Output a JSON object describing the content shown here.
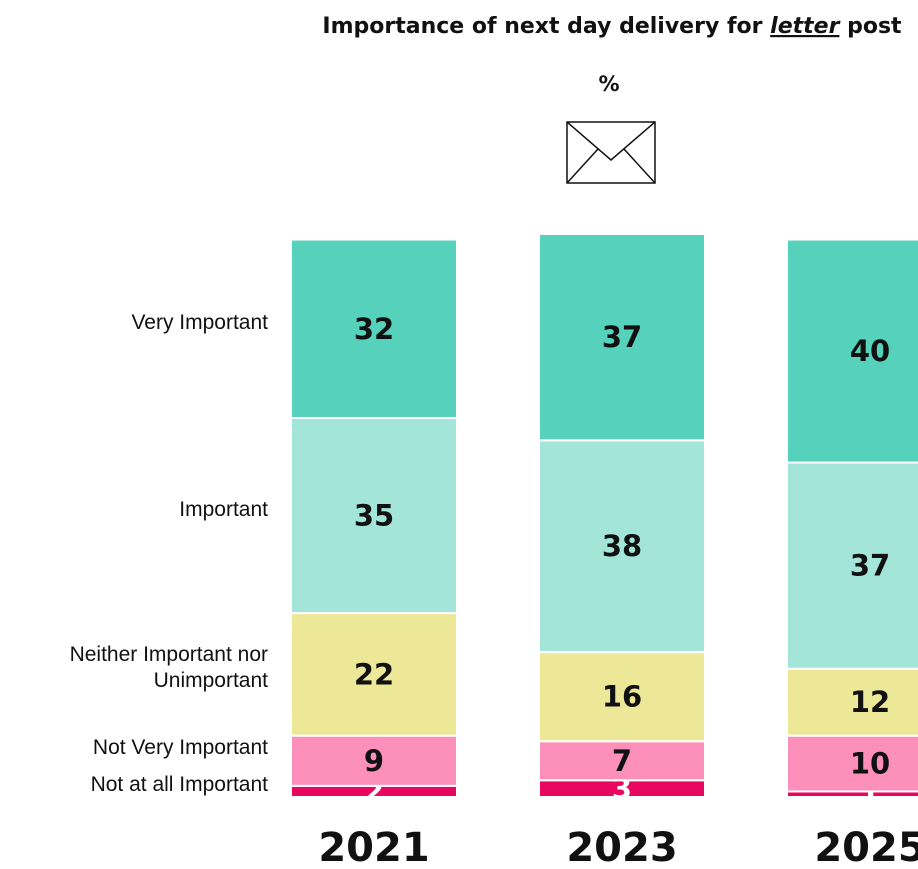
{
  "chart_data": {
    "type": "stacked-bar",
    "title": "Importance of next day delivery for",
    "title_emphasis": "letter",
    "title_end": "post",
    "subtitle": "%",
    "categories": [
      "2021",
      "2023",
      "2025"
    ],
    "series": [
      {
        "name": "Very Important",
        "color": "#55d1bc",
        "values": [
          32,
          37,
          40
        ]
      },
      {
        "name": "Important",
        "color": "#a3e6d9",
        "values": [
          35,
          38,
          37
        ]
      },
      {
        "name": "Neither Important nor Unimportant",
        "color": "#ede898",
        "values": [
          22,
          16,
          12
        ]
      },
      {
        "name": "Not Very Important",
        "color": "#fd8fbb",
        "values": [
          9,
          7,
          10
        ]
      },
      {
        "name": "Not at all Important",
        "color": "#e8075f",
        "values": [
          2,
          3,
          1
        ]
      }
    ]
  }
}
